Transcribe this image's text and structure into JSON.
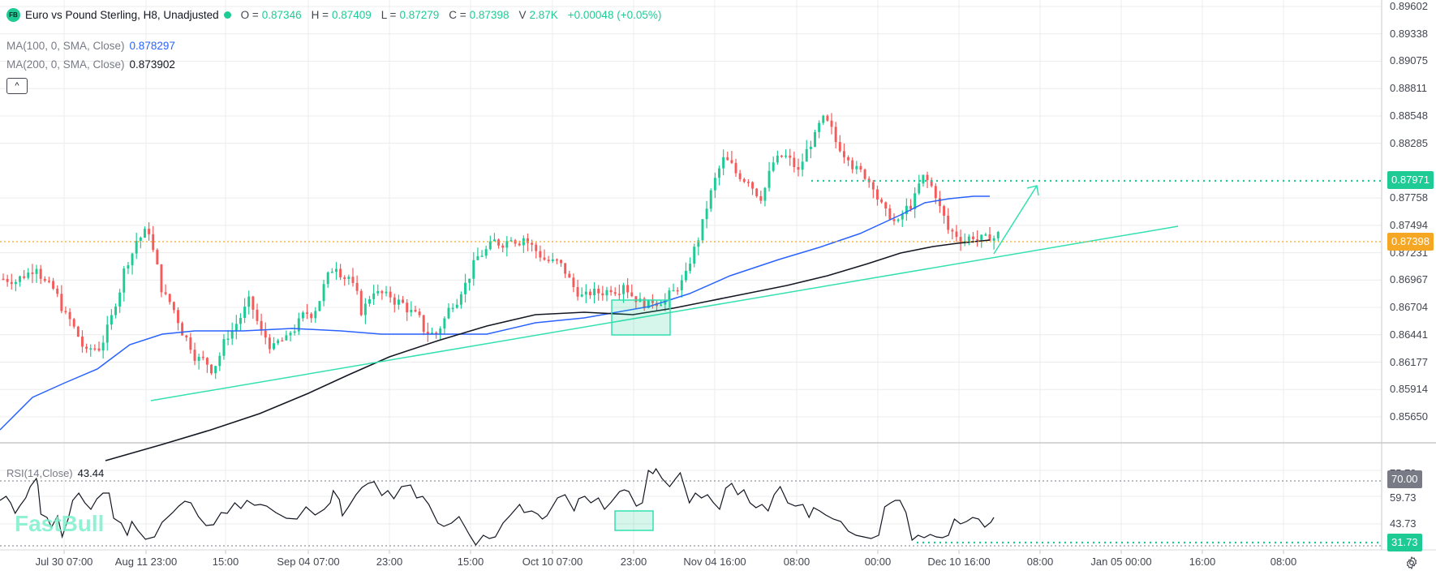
{
  "header": {
    "logo": "FB",
    "symbol_title": "Euro vs Pound Sterling, H8, Unadjusted",
    "ohlc": [
      {
        "label": "O =",
        "value": "0.87346"
      },
      {
        "label": "H =",
        "value": "0.87409"
      },
      {
        "label": "L =",
        "value": "0.87279"
      },
      {
        "label": "C =",
        "value": "0.87398"
      },
      {
        "label": "V",
        "value": "2.87K"
      }
    ],
    "change": "+0.00048 (+0.05%)"
  },
  "indicators": {
    "ma100": {
      "label": "MA(100, 0, SMA, Close)",
      "value": "0.878297",
      "color": "#2962ff"
    },
    "ma200": {
      "label": "MA(200, 0, SMA, Close)",
      "value": "0.873902",
      "color": "#131722"
    },
    "collapse_icon": "^"
  },
  "rsi": {
    "label": "RSI(14,Close)",
    "value": "43.44"
  },
  "watermark": "FastBull",
  "price_axis": {
    "ticks": [
      "0.89602",
      "0.89338",
      "0.89075",
      "0.88811",
      "0.88548",
      "0.88285",
      "0.87758",
      "0.87494",
      "0.87231",
      "0.86967",
      "0.86704",
      "0.86441",
      "0.86177",
      "0.85914",
      "0.85650"
    ],
    "target_tag": "0.87971",
    "current_tag": "0.87398"
  },
  "rsi_axis": {
    "ticks": [
      "75.73",
      "59.73",
      "43.73"
    ],
    "overbought_tag": "70.00",
    "level_tag": "31.73"
  },
  "time_axis": {
    "labels": [
      "Jul 30 07:00",
      "Aug 11 23:00",
      "15:00",
      "Sep 04 07:00",
      "23:00",
      "15:00",
      "Oct 10 07:00",
      "23:00",
      "Nov 04 16:00",
      "08:00",
      "00:00",
      "Dec 10 16:00",
      "08:00",
      "Jan 05 00:00",
      "16:00",
      "08:00"
    ]
  },
  "colors": {
    "up": "#1ecb95",
    "down": "#f45b5b",
    "ma100": "#2962ff",
    "ma200": "#131722",
    "trendline": "#33e0b0",
    "current_price": "#f5a623",
    "target": "#1ecb95",
    "rsi_level_tag": "#787b86"
  },
  "chart_data": {
    "type": "candlestick",
    "title": "Euro vs Pound Sterling, H8, Unadjusted",
    "ylim": [
      0.855,
      0.8968
    ],
    "x_labels": [
      "Jul 30 07:00",
      "Aug 11 23:00",
      "15:00",
      "Sep 04 07:00",
      "23:00",
      "15:00",
      "Oct 10 07:00",
      "23:00",
      "Nov 04 16:00",
      "08:00",
      "00:00",
      "Dec 10 16:00",
      "08:00",
      "Jan 05 00:00",
      "16:00",
      "08:00"
    ],
    "last": {
      "open": 0.87346,
      "high": 0.87409,
      "low": 0.87279,
      "close": 0.87398,
      "volume": "2.87K",
      "change": 0.00048,
      "change_pct": 0.05
    },
    "close_approx": [
      0.8698,
      0.8702,
      0.8712,
      0.869,
      0.8672,
      0.865,
      0.8625,
      0.8632,
      0.866,
      0.8705,
      0.8735,
      0.8745,
      0.869,
      0.8668,
      0.864,
      0.862,
      0.8612,
      0.8635,
      0.8655,
      0.8675,
      0.8645,
      0.863,
      0.8638,
      0.8655,
      0.8665,
      0.869,
      0.8712,
      0.87,
      0.8668,
      0.8688,
      0.868,
      0.8675,
      0.8665,
      0.865,
      0.8645,
      0.8668,
      0.8688,
      0.871,
      0.8725,
      0.8733,
      0.874,
      0.8738,
      0.8725,
      0.8715,
      0.871,
      0.869,
      0.868,
      0.8685,
      0.869,
      0.8695,
      0.868,
      0.8672,
      0.8678,
      0.8685,
      0.87,
      0.8738,
      0.878,
      0.8812,
      0.88,
      0.8795,
      0.8778,
      0.881,
      0.8815,
      0.88,
      0.883,
      0.885,
      0.883,
      0.8818,
      0.88,
      0.879,
      0.876,
      0.875,
      0.877,
      0.8795,
      0.878,
      0.8745,
      0.8738,
      0.874,
      0.8735,
      0.874
    ],
    "ma100": {
      "label": "MA(100, 0, SMA, Close)",
      "last": 0.878297
    },
    "ma200": {
      "label": "MA(200, 0, SMA, Close)",
      "last": 0.873902
    },
    "annotations": [
      {
        "type": "horizontal_dotted",
        "value": 0.87971,
        "label": "0.87971"
      },
      {
        "type": "current_price",
        "value": 0.87398
      },
      {
        "type": "trendline",
        "from": [
          "Aug 11 23:00",
          0.8598
        ],
        "to": [
          "Jan 05 00:00",
          0.8753
        ]
      },
      {
        "type": "arrow",
        "direction": "up",
        "target": 0.87971
      },
      {
        "type": "rectangle",
        "region": "Oct 10 - Oct 23",
        "ylim": [
          0.8654,
          0.8688
        ]
      }
    ],
    "rsi": {
      "label": "RSI(14,Close)",
      "last": 43.44,
      "levels": [
        70.0,
        31.73
      ],
      "ticks": [
        75.73,
        59.73,
        43.73
      ]
    }
  }
}
